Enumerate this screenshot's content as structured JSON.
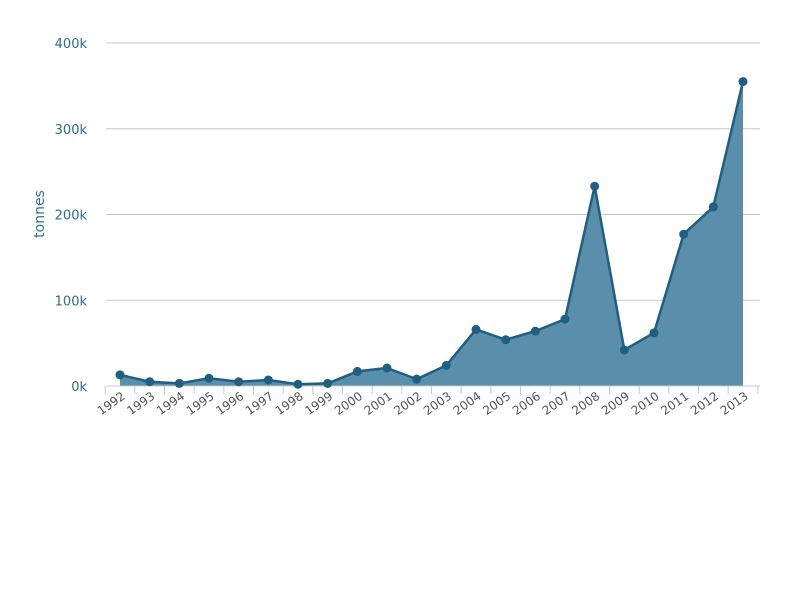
{
  "chart_data": {
    "type": "area",
    "title": "",
    "xlabel": "",
    "ylabel": "tonnes",
    "ylim": [
      0,
      400000
    ],
    "yticks": [
      {
        "value": 0,
        "label": "0k"
      },
      {
        "value": 100000,
        "label": "100k"
      },
      {
        "value": 200000,
        "label": "200k"
      },
      {
        "value": 300000,
        "label": "300k"
      },
      {
        "value": 400000,
        "label": "400k"
      }
    ],
    "grid": true,
    "legend": "none",
    "categories": [
      "1992",
      "1993",
      "1994",
      "1995",
      "1996",
      "1997",
      "1998",
      "1999",
      "2000",
      "2001",
      "2002",
      "2003",
      "2004",
      "2005",
      "2006",
      "2007",
      "2008",
      "2009",
      "2010",
      "2011",
      "2012",
      "2013"
    ],
    "values": [
      13000,
      5000,
      3000,
      9000,
      5000,
      7000,
      2000,
      3000,
      17000,
      21000,
      8000,
      24000,
      66000,
      54000,
      64000,
      78000,
      233000,
      42000,
      62000,
      177000,
      209000,
      355000
    ],
    "colors": {
      "fill": "#5a8fac",
      "line": "#1f5f82",
      "marker": "#1f5f82",
      "tick_text": "#2e6f8e"
    }
  }
}
